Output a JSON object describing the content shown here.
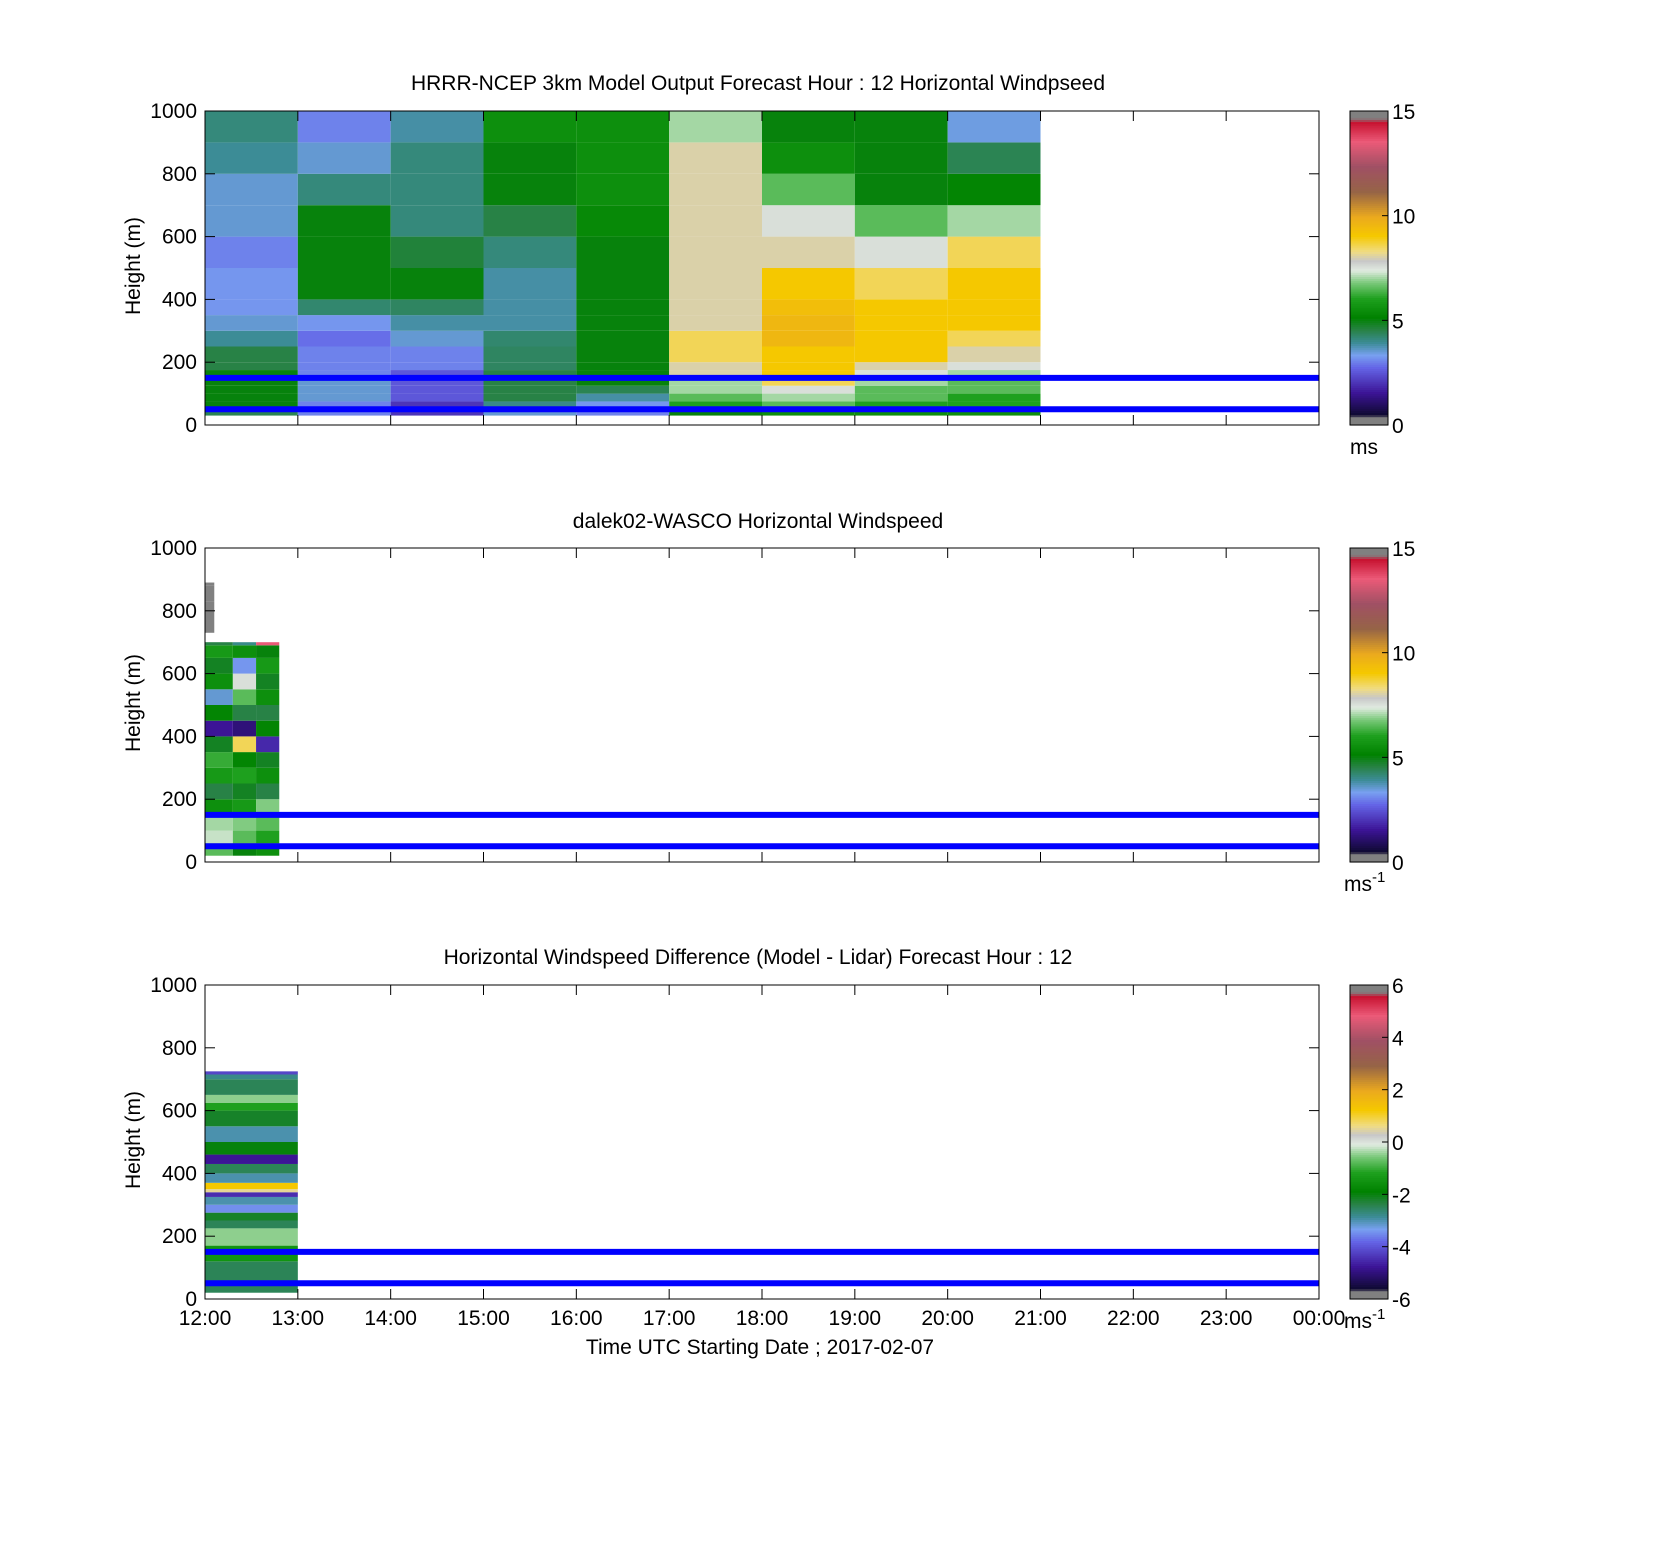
{
  "figure": {
    "x_title": "Time UTC  Starting Date ; 2017-02-07",
    "x_ticks": [
      "12:00",
      "13:00",
      "14:00",
      "15:00",
      "16:00",
      "17:00",
      "18:00",
      "19:00",
      "20:00",
      "21:00",
      "22:00",
      "23:00",
      "00:00"
    ],
    "y_label": "Height (m)",
    "ref_lines_m": [
      150,
      50
    ],
    "ref_line_color": "#0000ff"
  },
  "chart_data": [
    {
      "type": "heatmap",
      "title": "HRRR-NCEP 3km Model Output   Forecast Hour : 12 Horizontal Windpseed",
      "ylabel": "Height (m)",
      "ylim": [
        0,
        1000
      ],
      "y_ticks": [
        "0",
        "200",
        "400",
        "600",
        "800",
        "1000"
      ],
      "xlim_hours": [
        0,
        12
      ],
      "colorbar": {
        "ticks": [
          "0",
          "5",
          "10",
          "15"
        ],
        "range": [
          0,
          15
        ],
        "unit": "ms",
        "unit_exp": ""
      },
      "cells": {
        "x_start_hour": 0,
        "x_step_hours": 1,
        "heights": [
          30,
          50,
          75,
          100,
          125,
          150,
          175,
          200,
          250,
          300,
          350,
          400,
          500,
          600,
          700,
          800,
          900,
          1000
        ],
        "columns": [
          [
            4.4,
            5.0,
            5.0,
            5.0,
            5.0,
            5.0,
            4.5,
            4.5,
            3.9,
            3.5,
            3.2,
            3.2,
            3.0,
            3.5,
            3.5,
            3.9,
            4.1
          ],
          [
            3.0,
            3.0,
            3.5,
            3.5,
            3.5,
            3.0,
            3.0,
            3.0,
            2.8,
            3.2,
            4.2,
            5.0,
            5.0,
            5.0,
            4.1,
            3.5,
            3.0
          ],
          [
            2.0,
            2.0,
            2.5,
            2.5,
            2.5,
            2.5,
            3.0,
            3.0,
            3.5,
            3.8,
            4.3,
            5.0,
            4.6,
            4.1,
            4.1,
            4.1,
            3.8
          ],
          [
            3.5,
            4.0,
            4.5,
            4.5,
            4.5,
            4.5,
            4.3,
            4.3,
            4.2,
            3.8,
            3.8,
            3.8,
            4.1,
            4.5,
            5.0,
            5.0,
            5.5
          ],
          [
            3.0,
            3.2,
            3.8,
            4.4,
            5.0,
            5.0,
            5.0,
            5.0,
            5.0,
            5.0,
            5.0,
            5.0,
            5.0,
            5.3,
            5.5,
            5.5,
            5.5
          ],
          [
            5.0,
            6.0,
            6.5,
            7.0,
            7.0,
            8.0,
            8.0,
            8.5,
            8.5,
            8.0,
            8.0,
            8.0,
            8.0,
            8.0,
            8.0,
            8.0,
            7.0
          ],
          [
            5.5,
            6.5,
            7.0,
            7.5,
            8.5,
            9.0,
            9.0,
            9.0,
            9.5,
            9.5,
            9.3,
            9.0,
            8.0,
            7.5,
            6.5,
            5.5,
            5.0
          ],
          [
            5.5,
            6.0,
            6.5,
            6.5,
            7.0,
            7.5,
            8.0,
            9.0,
            9.0,
            9.0,
            9.0,
            8.5,
            7.5,
            6.5,
            5.0,
            5.0,
            5.0
          ],
          [
            5.5,
            6.0,
            6.0,
            6.5,
            6.5,
            7.0,
            7.5,
            8.0,
            8.5,
            9.0,
            9.0,
            9.0,
            8.5,
            7.0,
            5.2,
            4.4,
            3.4
          ]
        ]
      }
    },
    {
      "type": "heatmap",
      "title": "dalek02-WASCO  Horizontal Windspeed",
      "ylabel": "Height (m)",
      "ylim": [
        0,
        1000
      ],
      "y_ticks": [
        "0",
        "200",
        "400",
        "600",
        "800",
        "1000"
      ],
      "xlim_hours": [
        0,
        12
      ],
      "colorbar": {
        "ticks": [
          "0",
          "5",
          "10",
          "15"
        ],
        "range": [
          0,
          15
        ],
        "unit": "ms",
        "unit_exp": "-1"
      },
      "profiles": [
        {
          "x0_hours": 0.0,
          "x1_hours": 0.1,
          "heights": [
            730,
            830,
            880
          ],
          "values": [
            16,
            16,
            16
          ]
        },
        {
          "x0_hours": 0.0,
          "x1_hours": 0.3,
          "heights": [
            20,
            60,
            100,
            150,
            200,
            250,
            300,
            350,
            400,
            450,
            500,
            550,
            600,
            650,
            690
          ],
          "values": [
            6.5,
            7.2,
            7.0,
            5.5,
            4.5,
            5.8,
            6.2,
            4.8,
            1.5,
            5.2,
            3.5,
            5.5,
            4.8,
            5.8,
            4.5
          ]
        },
        {
          "x0_hours": 0.3,
          "x1_hours": 0.55,
          "heights": [
            20,
            60,
            100,
            150,
            200,
            250,
            300,
            350,
            400,
            450,
            500,
            550,
            600,
            650,
            690
          ],
          "values": [
            5.0,
            6.5,
            6.8,
            5.8,
            4.8,
            6.0,
            5.2,
            8.5,
            1.2,
            4.5,
            6.5,
            7.5,
            3.2,
            5.5,
            4.0
          ]
        },
        {
          "x0_hours": 0.55,
          "x1_hours": 0.8,
          "heights": [
            20,
            60,
            100,
            150,
            200,
            250,
            300,
            350,
            400,
            450,
            500,
            550,
            600,
            650,
            690
          ],
          "values": [
            5.5,
            6.0,
            6.5,
            6.8,
            4.5,
            5.5,
            4.8,
            1.8,
            5.2,
            4.5,
            5.5,
            4.8,
            5.8,
            5.0,
            13.5
          ]
        }
      ]
    },
    {
      "type": "heatmap",
      "title": "Horizontal Windspeed Difference (Model - Lidar) Forecast Hour : 12",
      "ylabel": "Height (m)",
      "ylim": [
        0,
        1000
      ],
      "y_ticks": [
        "0",
        "200",
        "400",
        "600",
        "800",
        "1000"
      ],
      "xlim_hours": [
        0,
        12
      ],
      "colorbar": {
        "ticks": [
          "-6",
          "-4",
          "-2",
          "0",
          "2",
          "4",
          "6"
        ],
        "range": [
          -6,
          6
        ],
        "unit": "ms",
        "unit_exp": "-1"
      },
      "profiles": [
        {
          "x0_hours": 0.0,
          "x1_hours": 1.0,
          "heights": [
            20,
            120,
            170,
            225,
            250,
            275,
            300,
            325,
            340,
            350,
            370,
            400,
            430,
            460,
            500,
            550,
            600,
            625,
            650,
            700,
            715
          ],
          "values": [
            -2.5,
            -1.5,
            -0.5,
            -2.5,
            -2.2,
            -3.5,
            -3.0,
            -4.5,
            0.5,
            1.2,
            -3.0,
            -2.5,
            -4.8,
            -2.0,
            -3.0,
            -2.2,
            -1.2,
            -0.5,
            -2.5,
            -2.8,
            -4.2
          ]
        }
      ]
    }
  ]
}
